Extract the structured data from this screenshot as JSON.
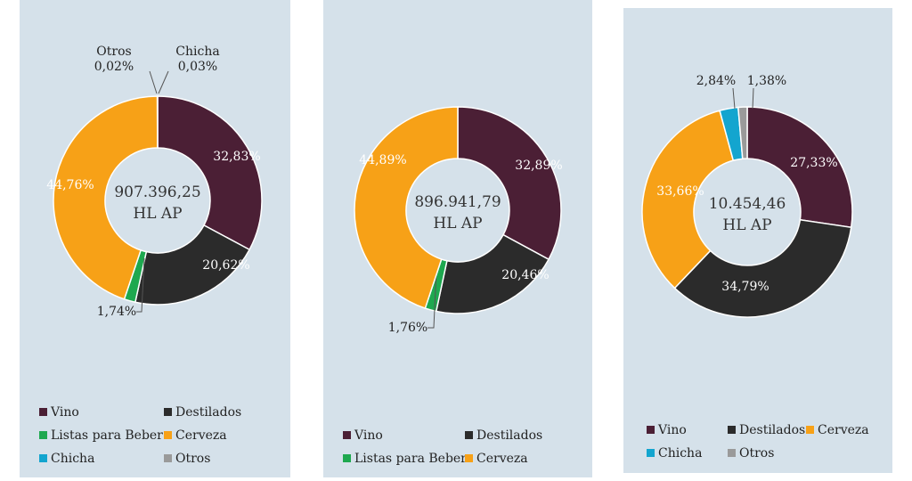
{
  "colors": {
    "Vino": "#4b1f35",
    "Destilados": "#2b2b2b",
    "Listas para Beber": "#1ea84f",
    "Cerveza": "#f7a117",
    "Chicha": "#13a5cf",
    "Otros": "#9a9a9a"
  },
  "chart_data": [
    {
      "type": "pie",
      "donut": true,
      "center_line1": "907.396,25",
      "center_line2": "HL AP",
      "slices": [
        {
          "name": "Vino",
          "value": 32.83,
          "label": "32,83%"
        },
        {
          "name": "Destilados",
          "value": 20.62,
          "label": "20,62%"
        },
        {
          "name": "Listas para Beber",
          "value": 1.74,
          "label": "1,74%"
        },
        {
          "name": "Cerveza",
          "value": 44.76,
          "label": "44,76%"
        },
        {
          "name": "Otros",
          "value": 0.02,
          "label": "0,02%",
          "callout_name": "Otros"
        },
        {
          "name": "Chicha",
          "value": 0.03,
          "label": "0,03%",
          "callout_name": "Chicha"
        }
      ],
      "legend": [
        "Vino",
        "Destilados",
        "Listas para Beber",
        "Cerveza",
        "Chicha",
        "Otros"
      ],
      "legend_position": "bottom"
    },
    {
      "type": "pie",
      "donut": true,
      "center_line1": "896.941,79",
      "center_line2": "HL AP",
      "slices": [
        {
          "name": "Vino",
          "value": 32.89,
          "label": "32,89%"
        },
        {
          "name": "Destilados",
          "value": 20.46,
          "label": "20,46%"
        },
        {
          "name": "Listas para Beber",
          "value": 1.76,
          "label": "1,76%"
        },
        {
          "name": "Cerveza",
          "value": 44.89,
          "label": "44,89%"
        }
      ],
      "legend": [
        "Vino",
        "Destilados",
        "Listas para Beber",
        "Cerveza"
      ],
      "legend_position": "bottom"
    },
    {
      "type": "pie",
      "donut": true,
      "center_line1": "10.454,46",
      "center_line2": "HL AP",
      "slices": [
        {
          "name": "Vino",
          "value": 27.33,
          "label": "27,33%"
        },
        {
          "name": "Destilados",
          "value": 34.79,
          "label": "34,79%"
        },
        {
          "name": "Cerveza",
          "value": 33.66,
          "label": "33,66%"
        },
        {
          "name": "Chicha",
          "value": 2.84,
          "label": "2,84%"
        },
        {
          "name": "Otros",
          "value": 1.38,
          "label": "1,38%"
        }
      ],
      "legend": [
        "Vino",
        "Destilados",
        "Cerveza",
        "Chicha",
        "Otros"
      ],
      "legend_position": "bottom"
    }
  ]
}
